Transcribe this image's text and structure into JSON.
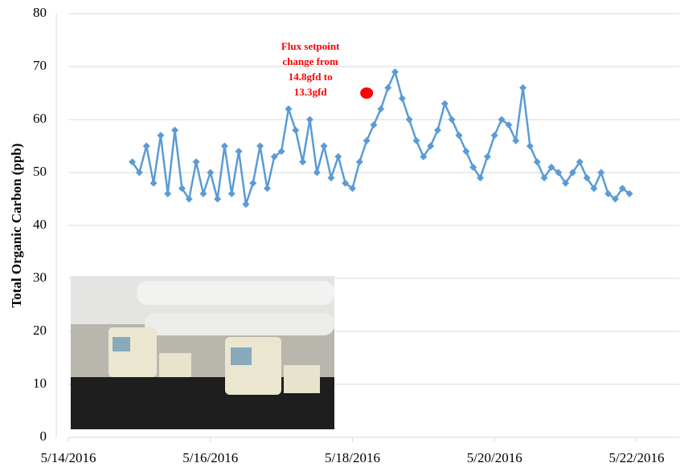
{
  "chart_data": {
    "type": "line",
    "y_label": "Total Organic Carbon (ppb)",
    "x": [
      42504.9,
      42505.0,
      42505.1,
      42505.2,
      42505.3,
      42505.4,
      42505.5,
      42505.6,
      42505.7,
      42505.8,
      42505.9,
      42506.0,
      42506.1,
      42506.2,
      42506.3,
      42506.4,
      42506.5,
      42506.6,
      42506.7,
      42506.8,
      42506.9,
      42507.0,
      42507.1,
      42507.2,
      42507.3,
      42507.4,
      42507.5,
      42507.6,
      42507.7,
      42507.8,
      42507.9,
      42508.0,
      42508.1,
      42508.2,
      42508.3,
      42508.4,
      42508.5,
      42508.6,
      42508.7,
      42508.8,
      42508.9,
      42509.0,
      42509.1,
      42509.2,
      42509.3,
      42509.4,
      42509.5,
      42509.6,
      42509.7,
      42509.8,
      42509.9,
      42510.0,
      42510.1,
      42510.2,
      42510.3,
      42510.4,
      42510.5,
      42510.6,
      42510.7,
      42510.8,
      42510.9,
      42511.0,
      42511.1,
      42511.2,
      42511.3,
      42511.4,
      42511.5,
      42511.6,
      42511.7,
      42511.8,
      42511.9
    ],
    "series": [
      {
        "color": "#5b9bd5",
        "values": [
          52,
          50,
          55,
          48,
          57,
          46,
          58,
          47,
          45,
          52,
          46,
          50,
          45,
          55,
          46,
          54,
          44,
          48,
          55,
          47,
          53,
          54,
          62,
          58,
          52,
          60,
          50,
          55,
          49,
          53,
          48,
          47,
          52,
          56,
          59,
          62,
          66,
          69,
          64,
          60,
          56,
          53,
          55,
          58,
          63,
          60,
          57,
          54,
          51,
          49,
          53,
          57,
          60,
          59,
          56,
          66,
          55,
          52,
          49,
          51,
          50,
          48,
          50,
          52,
          49,
          47,
          50,
          46,
          45,
          47,
          46
        ]
      }
    ],
    "xlim": [
      42504,
      42512.6
    ],
    "xticks": [
      {
        "value": 42504,
        "label": "5/14/2016"
      },
      {
        "value": 42506,
        "label": "5/16/2016"
      },
      {
        "value": 42508,
        "label": "5/18/2016"
      },
      {
        "value": 42510,
        "label": "5/20/2016"
      },
      {
        "value": 42512,
        "label": "5/22/2016"
      }
    ],
    "ylim": [
      0,
      80
    ],
    "yticks": [
      0,
      10,
      20,
      30,
      40,
      50,
      60,
      70,
      80
    ],
    "grid": true,
    "annotation": {
      "lines": [
        "Flux setpoint",
        "change from",
        "14.8gfd to",
        "13.3gfd"
      ],
      "x": 42508.2,
      "y": 65,
      "color": "#ff0000"
    }
  }
}
